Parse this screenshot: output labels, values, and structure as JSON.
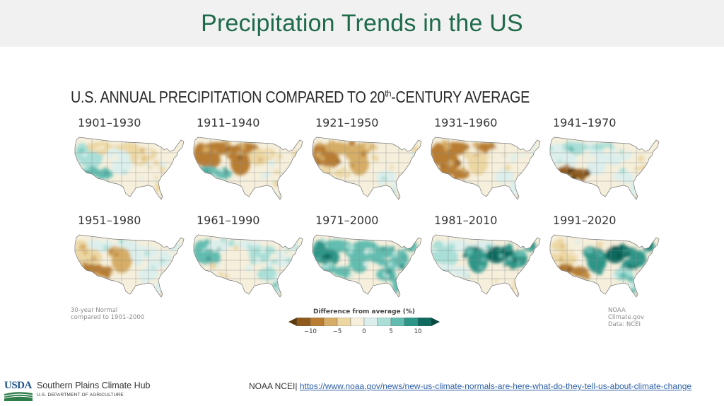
{
  "slide": {
    "title": "Precipitation Trends in the US"
  },
  "figure": {
    "title_main": "U.S. ANNUAL PRECIPITATION COMPARED TO 20",
    "title_sup": "th",
    "title_end": "-CENTURY AVERAGE",
    "note_left_line1": "30-year Normal",
    "note_left_line2": "compared to 1901–2000",
    "note_right_line1": "NOAA Climate.gov",
    "note_right_line2": "Data: NCEI",
    "legend": {
      "title": "Difference from average (%)",
      "ticks": [
        "−10",
        "−5",
        "0",
        "5",
        "10"
      ],
      "tick_values": [
        -10,
        -5,
        0,
        5,
        10
      ],
      "range": [
        -12.5,
        12.5
      ],
      "colors": [
        "#5c3a0e",
        "#8f5a1c",
        "#b87d33",
        "#d6ad66",
        "#ecd7a3",
        "#f5efdc",
        "#dcefec",
        "#a9dfd7",
        "#62bdb0",
        "#2e9688",
        "#0f6b5f",
        "#0a4a42"
      ]
    },
    "maps": [
      {
        "period": "1901–1930",
        "pattern": "west-mixed-wet",
        "north": -3,
        "west": 4,
        "southwest": 6,
        "plains": 2,
        "midwest": -3,
        "east": -2,
        "southeast": -1
      },
      {
        "period": "1911–1940",
        "pattern": "north-dry",
        "north": -9,
        "west": -8,
        "southwest": 6,
        "plains": -9,
        "midwest": -3,
        "east": -2,
        "southeast": -1
      },
      {
        "period": "1921–1950",
        "pattern": "west-dry",
        "north": -7,
        "west": -8,
        "southwest": -3,
        "plains": -6,
        "midwest": -2,
        "east": -1,
        "southeast": 1
      },
      {
        "period": "1931–1960",
        "pattern": "west-dry",
        "north": -8,
        "west": -9,
        "southwest": -8,
        "plains": -4,
        "midwest": -2,
        "east": -1,
        "southeast": 1
      },
      {
        "period": "1941–1970",
        "pattern": "southwest-dry",
        "north": 3,
        "west": 2,
        "southwest": -11,
        "plains": 1,
        "midwest": 1,
        "east": -2,
        "southeast": 0
      },
      {
        "period": "1951–1980",
        "pattern": "southwest-dry",
        "north": 1,
        "west": -4,
        "southwest": -10,
        "plains": -6,
        "midwest": 1,
        "east": 2,
        "southeast": 2
      },
      {
        "period": "1961–1990",
        "pattern": "mixed-wet",
        "north": 2,
        "west": 5,
        "southwest": -2,
        "plains": -1,
        "midwest": 3,
        "east": 2,
        "southeast": 3
      },
      {
        "period": "1971–2000",
        "pattern": "wet",
        "north": 5,
        "west": 8,
        "southwest": 5,
        "plains": 5,
        "midwest": 7,
        "east": 6,
        "southeast": 7
      },
      {
        "period": "1981–2010",
        "pattern": "east-wet",
        "north": 2,
        "west": 3,
        "southwest": 2,
        "plains": 8,
        "midwest": 10,
        "east": 8,
        "southeast": -2
      },
      {
        "period": "1991–2020",
        "pattern": "east-wet-southwest-dry",
        "north": -2,
        "west": -3,
        "southwest": -10,
        "plains": 9,
        "midwest": 12,
        "east": 9,
        "southeast": 3
      }
    ]
  },
  "footer": {
    "logo_text": "USDA",
    "hub_name": "Southern Plains Climate Hub",
    "department": "U.S. DEPARTMENT OF AGRICULTURE",
    "source_label": "NOAA NCEI|",
    "source_link": "https://www.noaa.gov/news/new-us-climate-normals-are-here-what-do-they-tell-us-about-climate-change"
  }
}
